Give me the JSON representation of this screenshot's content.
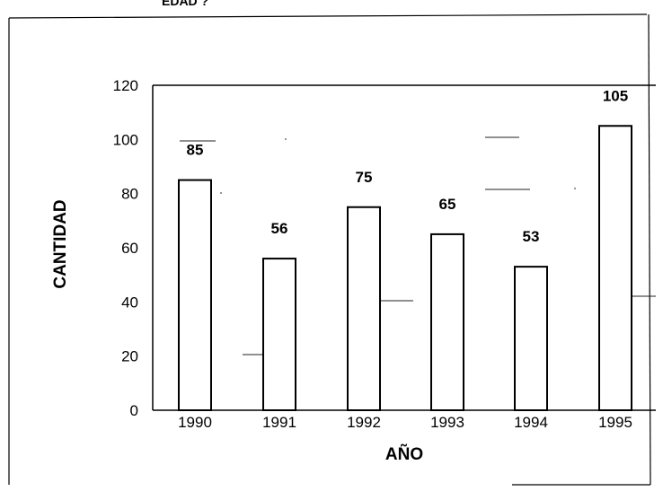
{
  "header_fragment": "EDAD ?",
  "chart_data": {
    "type": "bar",
    "categories": [
      "1990",
      "1991",
      "1992",
      "1993",
      "1994",
      "1995"
    ],
    "values": [
      85,
      56,
      75,
      65,
      53,
      105
    ],
    "data_labels": [
      "85",
      "56",
      "75",
      "65",
      "53",
      "105"
    ],
    "xlabel": "AÑO",
    "ylabel": "CANTIDAD",
    "ylim": [
      0,
      120
    ],
    "yticks": [
      "0",
      "20",
      "40",
      "60",
      "80",
      "100",
      "120"
    ],
    "grid": false,
    "legend": "none"
  }
}
